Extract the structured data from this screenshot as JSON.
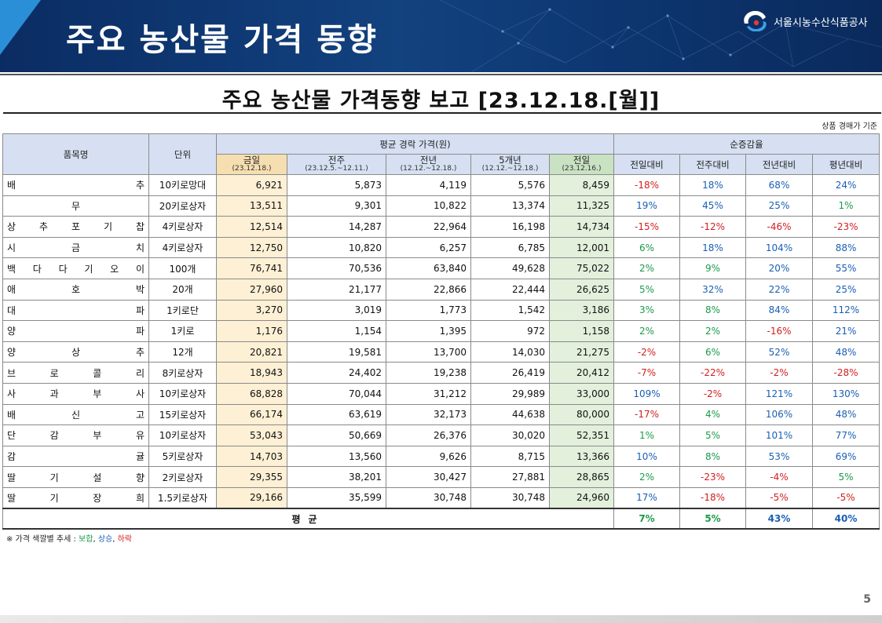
{
  "slide": {
    "title": "주요 농산물 가격 동향",
    "org": "서울시농수산식품공사",
    "page": "5"
  },
  "report": {
    "title": "주요 농산물 가격동향 보고 [23.12.18.[월]]",
    "basis": "상품 경매가 기준"
  },
  "table": {
    "headers": {
      "item": "품목명",
      "unit": "단위",
      "avg_group": "평균 경락 가격(원)",
      "change_group": "순증감율",
      "cols": [
        {
          "label": "금일",
          "sub": "(23.12.18.)"
        },
        {
          "label": "전주",
          "sub": "(23.12.5.~12.11.)"
        },
        {
          "label": "전년",
          "sub": "(12.12.~12.18.)"
        },
        {
          "label": "5개년",
          "sub": "(12.12.~12.18.)"
        },
        {
          "label": "전일",
          "sub": "(23.12.16.)"
        }
      ],
      "change_cols": [
        "전일대비",
        "전주대비",
        "전년대비",
        "평년대비"
      ]
    },
    "rows": [
      {
        "name": "배추",
        "unit": "10키로망대",
        "today": "6,921",
        "week": "5,873",
        "year": "4,119",
        "five": "5,576",
        "prev": "8,459",
        "c1": "-18%",
        "c2": "18%",
        "c3": "68%",
        "c4": "24%"
      },
      {
        "name": "무",
        "unit": "20키로상자",
        "today": "13,511",
        "week": "9,301",
        "year": "10,822",
        "five": "13,374",
        "prev": "11,325",
        "c1": "19%",
        "c2": "45%",
        "c3": "25%",
        "c4": "1%"
      },
      {
        "name": "상추포기찹",
        "unit": "4키로상자",
        "today": "12,514",
        "week": "14,287",
        "year": "22,964",
        "five": "16,198",
        "prev": "14,734",
        "c1": "-15%",
        "c2": "-12%",
        "c3": "-46%",
        "c4": "-23%"
      },
      {
        "name": "시금치",
        "unit": "4키로상자",
        "today": "12,750",
        "week": "10,820",
        "year": "6,257",
        "five": "6,785",
        "prev": "12,001",
        "c1": "6%",
        "c2": "18%",
        "c3": "104%",
        "c4": "88%"
      },
      {
        "name": "백다다기오이",
        "unit": "100개",
        "today": "76,741",
        "week": "70,536",
        "year": "63,840",
        "five": "49,628",
        "prev": "75,022",
        "c1": "2%",
        "c2": "9%",
        "c3": "20%",
        "c4": "55%"
      },
      {
        "name": "애호박",
        "unit": "20개",
        "today": "27,960",
        "week": "21,177",
        "year": "22,866",
        "five": "22,444",
        "prev": "26,625",
        "c1": "5%",
        "c2": "32%",
        "c3": "22%",
        "c4": "25%"
      },
      {
        "name": "대파",
        "unit": "1키로단",
        "today": "3,270",
        "week": "3,019",
        "year": "1,773",
        "five": "1,542",
        "prev": "3,186",
        "c1": "3%",
        "c2": "8%",
        "c3": "84%",
        "c4": "112%"
      },
      {
        "name": "양파",
        "unit": "1키로",
        "today": "1,176",
        "week": "1,154",
        "year": "1,395",
        "five": "972",
        "prev": "1,158",
        "c1": "2%",
        "c2": "2%",
        "c3": "-16%",
        "c4": "21%"
      },
      {
        "name": "양상추",
        "unit": "12개",
        "today": "20,821",
        "week": "19,581",
        "year": "13,700",
        "five": "14,030",
        "prev": "21,275",
        "c1": "-2%",
        "c2": "6%",
        "c3": "52%",
        "c4": "48%"
      },
      {
        "name": "브로콜리",
        "unit": "8키로상자",
        "today": "18,943",
        "week": "24,402",
        "year": "19,238",
        "five": "26,419",
        "prev": "20,412",
        "c1": "-7%",
        "c2": "-22%",
        "c3": "-2%",
        "c4": "-28%"
      },
      {
        "name": "사과부사",
        "unit": "10키로상자",
        "today": "68,828",
        "week": "70,044",
        "year": "31,212",
        "five": "29,989",
        "prev": "33,000",
        "c1": "109%",
        "c2": "-2%",
        "c3": "121%",
        "c4": "130%"
      },
      {
        "name": "배신고",
        "unit": "15키로상자",
        "today": "66,174",
        "week": "63,619",
        "year": "32,173",
        "five": "44,638",
        "prev": "80,000",
        "c1": "-17%",
        "c2": "4%",
        "c3": "106%",
        "c4": "48%"
      },
      {
        "name": "단감부유",
        "unit": "10키로상자",
        "today": "53,043",
        "week": "50,669",
        "year": "26,376",
        "five": "30,020",
        "prev": "52,351",
        "c1": "1%",
        "c2": "5%",
        "c3": "101%",
        "c4": "77%"
      },
      {
        "name": "감귤",
        "unit": "5키로상자",
        "today": "14,703",
        "week": "13,560",
        "year": "9,626",
        "five": "8,715",
        "prev": "13,366",
        "c1": "10%",
        "c2": "8%",
        "c3": "53%",
        "c4": "69%"
      },
      {
        "name": "딸기설향",
        "unit": "2키로상자",
        "today": "29,355",
        "week": "38,201",
        "year": "30,427",
        "five": "27,881",
        "prev": "28,865",
        "c1": "2%",
        "c2": "-23%",
        "c3": "-4%",
        "c4": "5%"
      },
      {
        "name": "딸기장희",
        "unit": "1.5키로상자",
        "today": "29,166",
        "week": "35,599",
        "year": "30,748",
        "five": "30,748",
        "prev": "24,960",
        "c1": "17%",
        "c2": "-18%",
        "c3": "-5%",
        "c4": "-5%"
      }
    ],
    "average": {
      "label": "평균",
      "c1": "7%",
      "c2": "5%",
      "c3": "43%",
      "c4": "40%"
    }
  },
  "footnote": {
    "prefix": "※ 가격 색깔별 추세 : ",
    "flat": "보합",
    "sep1": ", ",
    "up": "상승",
    "sep2": ", ",
    "down": "하락"
  },
  "colors": {
    "up": "#d22020",
    "down": "#1a5fb4",
    "flat": "#1b9a4a",
    "header_bg": "#0b2c63"
  }
}
